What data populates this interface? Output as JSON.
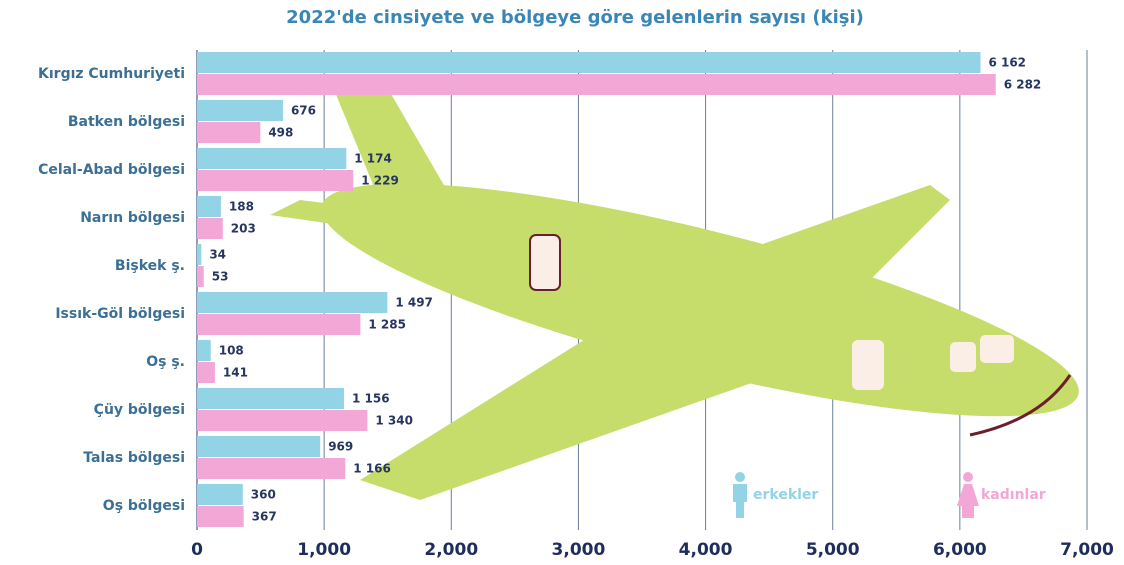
{
  "chart_data": {
    "type": "bar",
    "orientation": "horizontal",
    "title": "2022'de cinsiyete ve bölgeye göre gelenlerin sayısı (kişi)",
    "categories": [
      "Kırgız Cumhuriyeti",
      "Batken bölgesi",
      "Celal-Abad bölgesi",
      "Narın bölgesi",
      "Bişkek ş.",
      "Issık-Göl bölgesi",
      "Oş ş.",
      "Çüy bölgesi",
      "Talas bölgesi",
      "Oş bölgesi"
    ],
    "series": [
      {
        "name": "erkekler",
        "color": "#92d3e6",
        "values": [
          6162,
          676,
          1174,
          188,
          34,
          1497,
          108,
          1156,
          969,
          360
        ],
        "value_labels": [
          "6 162",
          "676",
          "1 174",
          "188",
          "34",
          "1 497",
          "108",
          "1 156",
          "969",
          "360"
        ]
      },
      {
        "name": "kadınlar",
        "color": "#f2a7d6",
        "values": [
          6282,
          498,
          1229,
          203,
          53,
          1285,
          141,
          1340,
          1166,
          367
        ],
        "value_labels": [
          "6 282",
          "498",
          "1 229",
          "203",
          "53",
          "1 285",
          "141",
          "1 340",
          "1 166",
          "367"
        ]
      }
    ],
    "xlim": [
      0,
      7000
    ],
    "xticks": [
      0,
      {
        "value": 1000,
        "label": "1,000"
      },
      {
        "value": 2000,
        "label": "2,000"
      },
      {
        "value": 3000,
        "label": "3,000"
      },
      {
        "value": 4000,
        "label": "4,000"
      },
      {
        "value": 5000,
        "label": "5,000"
      },
      {
        "value": 6000,
        "label": "6,000"
      },
      {
        "value": 7000,
        "label": "7,000"
      }
    ],
    "grid": true
  }
}
